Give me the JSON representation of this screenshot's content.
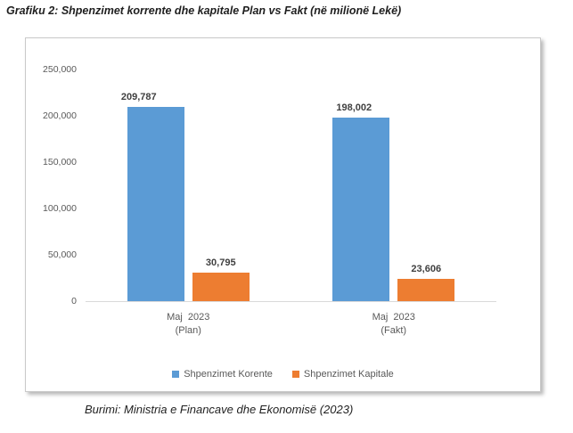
{
  "figure": {
    "title": "Grafiku 2: Shpenzimet korrente dhe kapitale Plan vs Fakt (në milionë Lekë)",
    "source": "Burimi: Ministria e Financave dhe Ekonomisë (2023)"
  },
  "colors": {
    "series_blue": "#5B9BD5",
    "series_orange": "#ED7D31",
    "axis_text": "#595959",
    "value_label_text": "#3F3F3F",
    "axis_line": "#D9D9D9",
    "frame_border": "#C9C9C9"
  },
  "chart_data": {
    "type": "bar",
    "title": "Shpenzimet korrente dhe kapitale Plan vs Fakt (në milionë Lekë)",
    "categories": [
      "Maj 2023 (Plan)",
      "Maj 2023 (Fakt)"
    ],
    "category_lines": [
      {
        "line1": "Maj  2023",
        "line2": "(Plan)"
      },
      {
        "line1": "Maj  2023",
        "line2": "(Fakt)"
      }
    ],
    "series": [
      {
        "name": "Shpenzimet Korente",
        "color": "#5B9BD5",
        "values": [
          209787,
          198002
        ],
        "value_labels": [
          "209,787",
          "198,002"
        ]
      },
      {
        "name": "Shpenzimet Kapitale",
        "color": "#ED7D31",
        "values": [
          30795,
          23606
        ],
        "value_labels": [
          "30,795",
          "23,606"
        ]
      }
    ],
    "ylim": [
      0,
      250000
    ],
    "y_ticks": [
      {
        "value": 250000,
        "label": "250,000"
      },
      {
        "value": 200000,
        "label": "200,000"
      },
      {
        "value": 150000,
        "label": "150,000"
      },
      {
        "value": 100000,
        "label": "100,000"
      },
      {
        "value": 50000,
        "label": "50,000"
      },
      {
        "value": 0,
        "label": "0"
      }
    ],
    "grid": false,
    "data_labels": true,
    "legend_position": "bottom",
    "xlabel": "",
    "ylabel": ""
  }
}
